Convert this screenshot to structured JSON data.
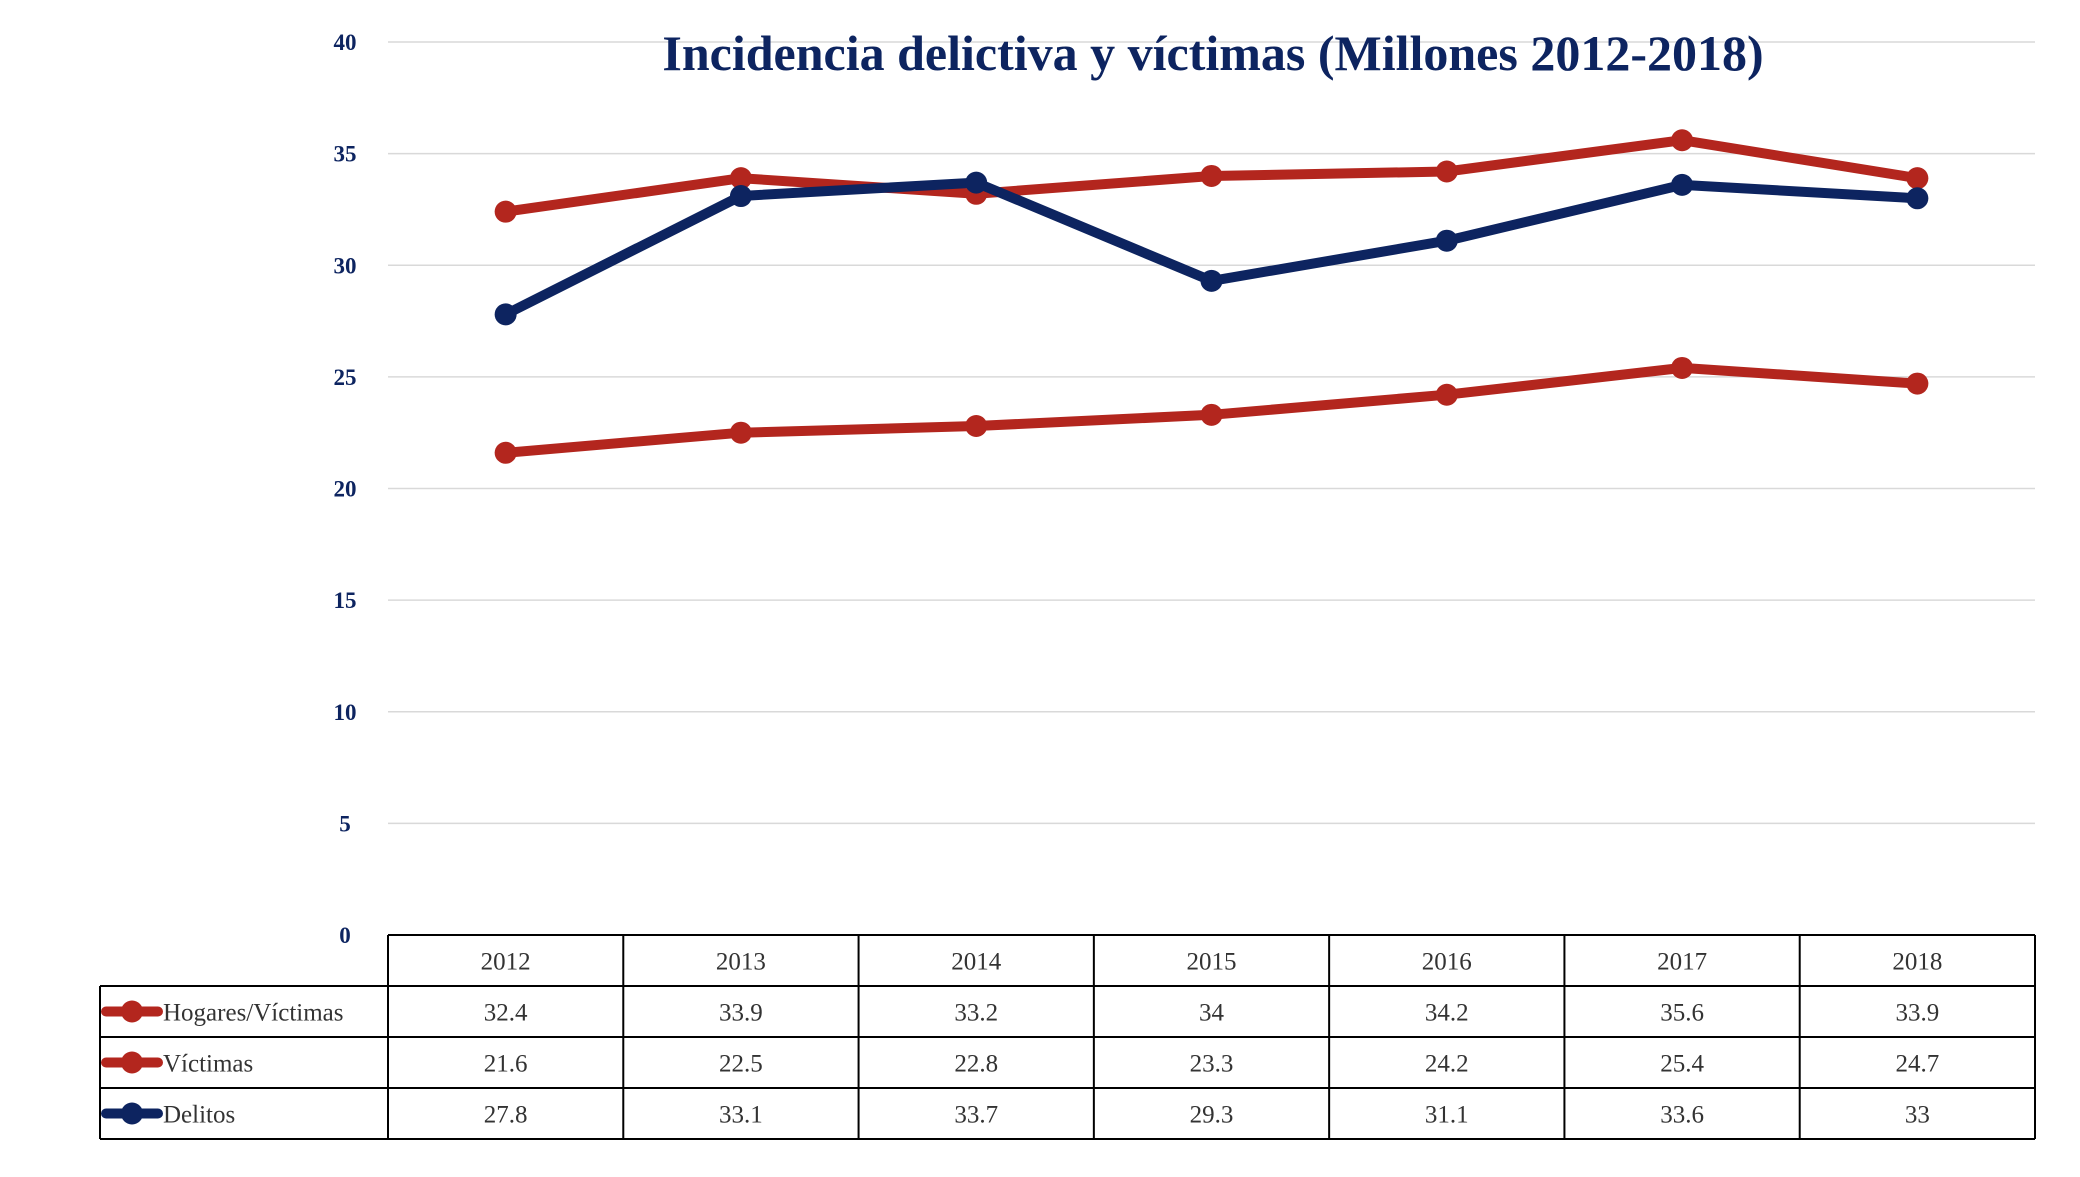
{
  "chart_data": {
    "type": "line",
    "title": "Incidencia delictiva y víctimas (Millones 2012-2018)",
    "xlabel": "",
    "ylabel": "",
    "categories": [
      "2012",
      "2013",
      "2014",
      "2015",
      "2016",
      "2017",
      "2018"
    ],
    "ylim": [
      0,
      40
    ],
    "yticks": [
      0,
      5,
      10,
      15,
      20,
      25,
      30,
      35,
      40
    ],
    "grid": true,
    "legend_position": "bottom (data table)",
    "series": [
      {
        "name": "Hogares/Víctimas",
        "color": "#b3261e",
        "values": [
          32.4,
          33.9,
          33.2,
          34,
          34.2,
          35.6,
          33.9
        ],
        "labels": [
          "32.4",
          "33.9",
          "33.2",
          "34",
          "34.2",
          "35.6",
          "33.9"
        ]
      },
      {
        "name": "Víctimas",
        "color": "#b3261e",
        "values": [
          21.6,
          22.5,
          22.8,
          23.3,
          24.2,
          25.4,
          24.7
        ],
        "labels": [
          "21.6",
          "22.5",
          "22.8",
          "23.3",
          "24.2",
          "25.4",
          "24.7"
        ]
      },
      {
        "name": "Delitos",
        "color": "#0d2460",
        "values": [
          27.8,
          33.1,
          33.7,
          29.3,
          31.1,
          33.6,
          33
        ],
        "labels": [
          "27.8",
          "33.1",
          "33.7",
          "29.3",
          "31.1",
          "33.6",
          "33"
        ]
      }
    ]
  }
}
